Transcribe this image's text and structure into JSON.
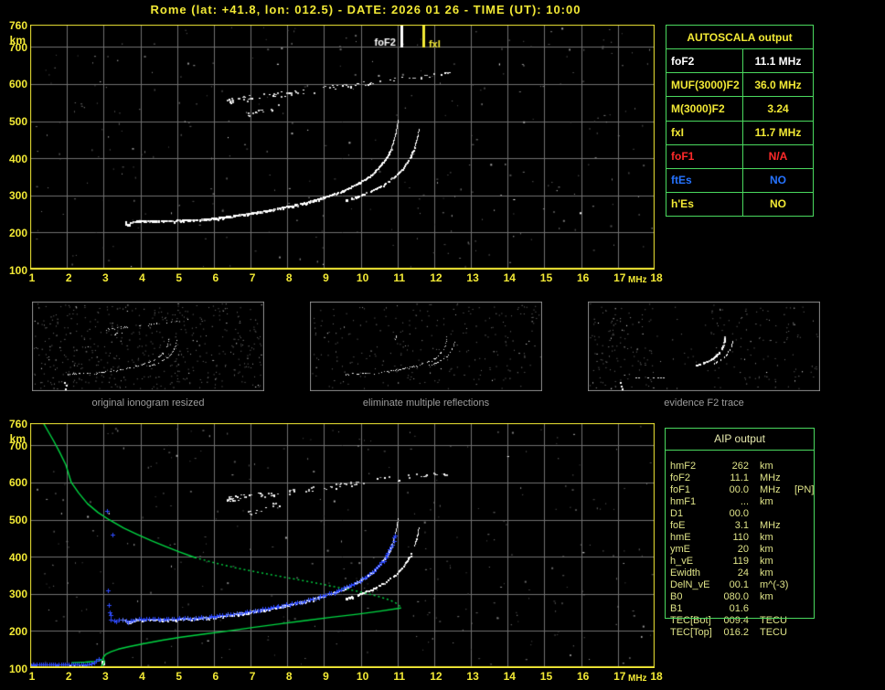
{
  "title": "Rome (lat: +41.8, lon: 012.5) - DATE: 2026 01 26 - TIME (UT): 10:00",
  "colors": {
    "accent_yellow": "#f2e935",
    "table_green": "#4ad95e",
    "profile_green": "#00d642",
    "trace_blue": "#2e4bff",
    "status_blue": "#2673ff",
    "status_red": "#ff2a2a",
    "white": "#ffffff",
    "grid_gray": "#707070",
    "caption_gray": "#9d9d9d"
  },
  "autoscala": {
    "header": "AUTOSCALA output",
    "rows": [
      {
        "label": "foF2",
        "value": "11.1 MHz",
        "color": "#ffffff"
      },
      {
        "label": "MUF(3000)F2",
        "value": "36.0 MHz",
        "color": "#f2e935"
      },
      {
        "label": "M(3000)F2",
        "value": "3.24",
        "color": "#f2e935"
      },
      {
        "label": "fxI",
        "value": "11.7 MHz",
        "color": "#f2e935"
      },
      {
        "label": "foF1",
        "value": "N/A",
        "color": "#ff2a2a"
      },
      {
        "label": "ftEs",
        "value": "NO",
        "color": "#2673ff"
      },
      {
        "label": "h'Es",
        "value": "NO",
        "color": "#f2e935"
      }
    ]
  },
  "aip": {
    "header": "AIP output",
    "rows": [
      {
        "label": "hmF2",
        "value": "262",
        "unit": "km",
        "note": ""
      },
      {
        "label": "foF2",
        "value": "11.1",
        "unit": "MHz",
        "note": ""
      },
      {
        "label": "foF1",
        "value": "00.0",
        "unit": "MHz",
        "note": "[PN]"
      },
      {
        "label": "hmF1",
        "value": "...",
        "unit": "km",
        "note": ""
      },
      {
        "label": "D1",
        "value": "00.0",
        "unit": "",
        "note": ""
      },
      {
        "label": "foE",
        "value": "3.1",
        "unit": "MHz",
        "note": ""
      },
      {
        "label": "hmE",
        "value": "110",
        "unit": "km",
        "note": ""
      },
      {
        "label": "ymE",
        "value": "20",
        "unit": "km",
        "note": ""
      },
      {
        "label": "h_vE",
        "value": "119",
        "unit": "km",
        "note": ""
      },
      {
        "label": "Ewidth",
        "value": "24",
        "unit": "km",
        "note": ""
      },
      {
        "label": "DelN_vE",
        "value": "00.1",
        "unit": "m^(-3)",
        "note": ""
      },
      {
        "label": "B0",
        "value": "080.0",
        "unit": "km",
        "note": ""
      },
      {
        "label": "B1",
        "value": "01.6",
        "unit": "",
        "note": ""
      },
      {
        "label": "TEC[Bot]",
        "value": "009.4",
        "unit": "TECU",
        "note": ""
      },
      {
        "label": "TEC[Top]",
        "value": "016.2",
        "unit": "TECU",
        "note": ""
      }
    ]
  },
  "thumbnails": [
    {
      "caption": "original ionogram resized"
    },
    {
      "caption": "eliminate multiple reflections"
    },
    {
      "caption": "evidence F2 trace"
    }
  ],
  "chart_data": {
    "type": "scatter",
    "description": "Two ionograms (virtual height km vs sounding frequency MHz). Top: scaled ionogram with foF2/fxI markers. Bottom: ionogram with restored trace (blue) and electron density profile (green).",
    "freq_axis": {
      "label": "MHz",
      "min": 1,
      "max": 18,
      "ticks": [
        1,
        2,
        3,
        4,
        5,
        6,
        7,
        8,
        9,
        10,
        11,
        12,
        13,
        14,
        15,
        16,
        17,
        18
      ]
    },
    "height_axis": {
      "label": "km",
      "min": 100,
      "max": 760,
      "ticks": [
        760,
        700,
        600,
        500,
        400,
        300,
        200,
        100
      ]
    },
    "grid": true,
    "markers": {
      "foF2": {
        "freq": 11.1,
        "label": "foF2",
        "color": "#ffffff"
      },
      "fxI": {
        "freq": 11.7,
        "label": "fxI",
        "color": "#f2e935"
      }
    },
    "o_trace": [
      [
        3.58,
        230
      ],
      [
        3.64,
        222
      ],
      [
        3.72,
        228
      ],
      [
        3.85,
        232
      ],
      [
        4.3,
        233
      ],
      [
        4.9,
        234
      ],
      [
        5.5,
        236
      ],
      [
        6.0,
        240
      ],
      [
        6.45,
        246
      ],
      [
        6.9,
        252
      ],
      [
        7.4,
        260
      ],
      [
        7.9,
        270
      ],
      [
        8.4,
        281
      ],
      [
        8.9,
        294
      ],
      [
        9.4,
        310
      ],
      [
        9.8,
        328
      ],
      [
        10.1,
        345
      ],
      [
        10.35,
        363
      ],
      [
        10.55,
        385
      ],
      [
        10.7,
        405
      ],
      [
        10.82,
        428
      ],
      [
        10.9,
        452
      ],
      [
        10.96,
        477
      ],
      [
        11.0,
        503
      ]
    ],
    "x_trace": [
      [
        9.55,
        288
      ],
      [
        9.9,
        299
      ],
      [
        10.25,
        312
      ],
      [
        10.6,
        330
      ],
      [
        10.9,
        352
      ],
      [
        11.15,
        377
      ],
      [
        11.33,
        403
      ],
      [
        11.45,
        430
      ],
      [
        11.53,
        456
      ],
      [
        11.58,
        480
      ]
    ],
    "second_hop": {
      "f0": 6.35,
      "h0": 556,
      "f1": 12.45,
      "h1": 630
    },
    "second_hop_lower": {
      "f0": 6.9,
      "h0": 516,
      "f1": 7.9,
      "h1": 548
    },
    "profile": {
      "topside": [
        [
          1.36,
          760
        ],
        [
          1.5,
          736
        ],
        [
          1.64,
          712
        ],
        [
          1.8,
          682
        ],
        [
          1.97,
          648
        ],
        [
          2.12,
          600
        ],
        [
          2.32,
          572
        ],
        [
          2.56,
          543
        ],
        [
          2.85,
          519
        ],
        [
          3.16,
          499
        ],
        [
          3.55,
          477
        ],
        [
          3.92,
          460
        ],
        [
          4.3,
          443
        ],
        [
          4.68,
          428
        ],
        [
          5.06,
          413
        ],
        [
          5.48,
          398
        ]
      ],
      "mid_dotted": [
        [
          5.48,
          398
        ],
        [
          6.0,
          384
        ],
        [
          6.55,
          371
        ],
        [
          7.1,
          360
        ],
        [
          7.7,
          349
        ],
        [
          8.3,
          338
        ],
        [
          8.9,
          327
        ],
        [
          9.45,
          316
        ],
        [
          9.95,
          306
        ],
        [
          10.45,
          294
        ],
        [
          10.8,
          283
        ],
        [
          11.02,
          272
        ],
        [
          11.1,
          262
        ]
      ],
      "bottomside": [
        [
          11.1,
          262
        ],
        [
          10.5,
          253
        ],
        [
          9.9,
          245
        ],
        [
          9.2,
          237
        ],
        [
          8.5,
          228
        ],
        [
          7.8,
          219
        ],
        [
          7.1,
          210
        ],
        [
          6.4,
          200
        ],
        [
          5.7,
          191
        ],
        [
          5.1,
          183
        ],
        [
          4.6,
          175
        ],
        [
          4.1,
          166
        ],
        [
          3.7,
          158
        ],
        [
          3.4,
          151
        ],
        [
          3.2,
          144
        ],
        [
          3.06,
          137
        ],
        [
          3.0,
          130
        ],
        [
          2.98,
          124
        ]
      ],
      "e_tail": [
        [
          2.98,
          124
        ],
        [
          2.9,
          120
        ],
        [
          2.75,
          118
        ],
        [
          2.5,
          116
        ],
        [
          2.3,
          115
        ],
        [
          2.12,
          114
        ]
      ],
      "e_drop": [
        [
          3.0,
          124
        ],
        [
          3.02,
          117
        ],
        [
          2.98,
          110
        ],
        [
          2.93,
          104
        ],
        [
          2.9,
          100
        ]
      ]
    },
    "blue_restored": {
      "e_flat": {
        "f0": 1.02,
        "f1": 2.6,
        "h": 110
      },
      "e_rise": [
        [
          2.66,
          112
        ],
        [
          2.74,
          115
        ],
        [
          2.8,
          119
        ],
        [
          2.87,
          124
        ]
      ],
      "foe_spikes": [
        [
          3.1,
          524
        ],
        [
          3.24,
          460
        ],
        [
          3.12,
          310
        ],
        [
          3.14,
          270
        ],
        [
          3.16,
          250
        ],
        [
          3.18,
          242
        ]
      ],
      "f_path_prefix": [
        [
          3.2,
          230
        ],
        [
          3.35,
          229
        ]
      ],
      "max_height": 465
    }
  }
}
